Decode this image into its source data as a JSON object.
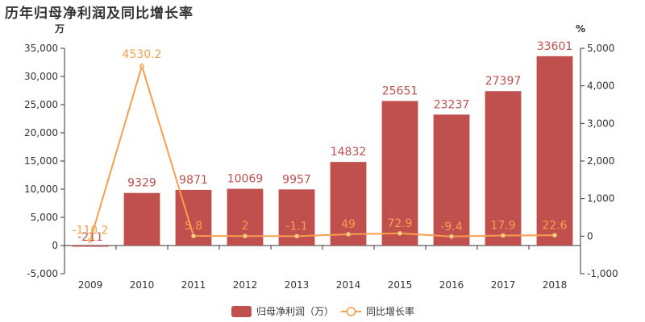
{
  "title": "历年归母净利润及同比增长率",
  "chart_data": {
    "type": "bar",
    "title": "历年归母净利润及同比增长率",
    "categories": [
      "2009",
      "2010",
      "2011",
      "2012",
      "2013",
      "2014",
      "2015",
      "2016",
      "2017",
      "2018"
    ],
    "left_axis": {
      "unit": "万",
      "ylim": [
        -5000,
        35000
      ],
      "ticks": [
        -5000,
        0,
        5000,
        10000,
        15000,
        20000,
        25000,
        30000,
        35000
      ],
      "tick_labels": [
        "-5,000",
        "0",
        "5,000",
        "10,000",
        "15,000",
        "20,000",
        "25,000",
        "30,000",
        "35,000"
      ]
    },
    "right_axis": {
      "unit": "%",
      "ylim": [
        -1000,
        5000
      ],
      "ticks": [
        -1000,
        0,
        1000,
        2000,
        3000,
        4000,
        5000
      ],
      "tick_labels": [
        "-1,000",
        "0",
        "1,000",
        "2,000",
        "3,000",
        "4,000",
        "5,000"
      ]
    },
    "series": [
      {
        "name": "归母净利润（万）",
        "type": "bar",
        "axis": "left",
        "color": "#c0504d",
        "values": [
          -211,
          9329,
          9871,
          10069,
          9957,
          14832,
          25651,
          23237,
          27397,
          33601
        ],
        "labels": [
          "-211",
          "9329",
          "9871",
          "10069",
          "9957",
          "14832",
          "25651",
          "23237",
          "27397",
          "33601"
        ]
      },
      {
        "name": "同比增长率",
        "type": "line",
        "axis": "right",
        "color": "#f79e4f",
        "values": [
          -110.2,
          4530.2,
          5.8,
          2,
          -1.1,
          49,
          72.9,
          -9.4,
          17.9,
          22.6
        ],
        "labels": [
          "-110.2",
          "4530.2",
          "5.8",
          "2",
          "-1.1",
          "49",
          "72.9",
          "-9.4",
          "17.9",
          "22.6"
        ]
      }
    ],
    "legend": {
      "position": "bottom"
    },
    "grid": false
  }
}
